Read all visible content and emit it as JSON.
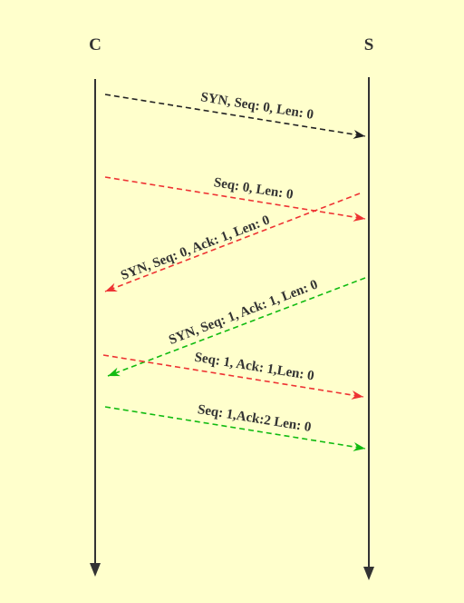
{
  "hosts": {
    "client": "C",
    "server": "S"
  },
  "messages": [
    {
      "from": "client",
      "to": "server",
      "label": "SYN, Seq: 0, Len: 0",
      "color": "#222222",
      "style": "dashed"
    },
    {
      "from": "client",
      "to": "server",
      "label": "Seq: 0, Len: 0",
      "color": "#ee3333",
      "style": "dashed"
    },
    {
      "from": "server",
      "to": "client",
      "label": "SYN, Seq: 0, Ack: 1, Len: 0",
      "color": "#ee3333",
      "style": "dashed"
    },
    {
      "from": "server",
      "to": "client",
      "label": "SYN, Seq: 1, Ack: 1, Len: 0",
      "color": "#11bb11",
      "style": "dashed"
    },
    {
      "from": "client",
      "to": "server",
      "label": "Seq: 1, Ack: 1,Len: 0",
      "color": "#ee3333",
      "style": "dashed"
    },
    {
      "from": "client",
      "to": "server",
      "label": "Seq: 1,Ack:2 Len: 0",
      "color": "#11bb11",
      "style": "dashed"
    }
  ],
  "colors": {
    "background": "#ffffcc",
    "lifeline": "#333333"
  }
}
